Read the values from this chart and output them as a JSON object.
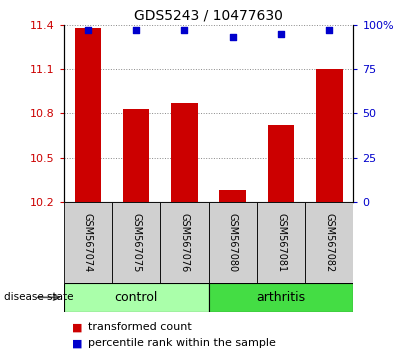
{
  "title": "GDS5243 / 10477630",
  "samples": [
    "GSM567074",
    "GSM567075",
    "GSM567076",
    "GSM567080",
    "GSM567081",
    "GSM567082"
  ],
  "bar_values": [
    11.38,
    10.83,
    10.87,
    10.28,
    10.72,
    11.1
  ],
  "percentile_values": [
    97,
    97,
    97,
    93,
    95,
    97
  ],
  "bar_color": "#cc0000",
  "percentile_color": "#0000cc",
  "ylim_left": [
    10.2,
    11.4
  ],
  "ylim_right": [
    0,
    100
  ],
  "yticks_left": [
    10.2,
    10.5,
    10.8,
    11.1,
    11.4
  ],
  "yticks_right": [
    0,
    25,
    50,
    75,
    100
  ],
  "ytick_labels_right": [
    "0",
    "25",
    "50",
    "75",
    "100%"
  ],
  "groups": [
    {
      "label": "control",
      "indices": [
        0,
        1,
        2
      ],
      "color": "#aaffaa"
    },
    {
      "label": "arthritis",
      "indices": [
        3,
        4,
        5
      ],
      "color": "#44dd44"
    }
  ],
  "group_label": "disease state",
  "legend_bar_label": "transformed count",
  "legend_dot_label": "percentile rank within the sample",
  "bar_color_legend": "#cc0000",
  "dot_color_legend": "#0000cc",
  "dotted_lines_color": "#888888",
  "bar_width": 0.55,
  "title_fontsize": 10,
  "tick_fontsize": 8,
  "sample_fontsize": 7,
  "legend_fontsize": 8,
  "group_fontsize": 9
}
